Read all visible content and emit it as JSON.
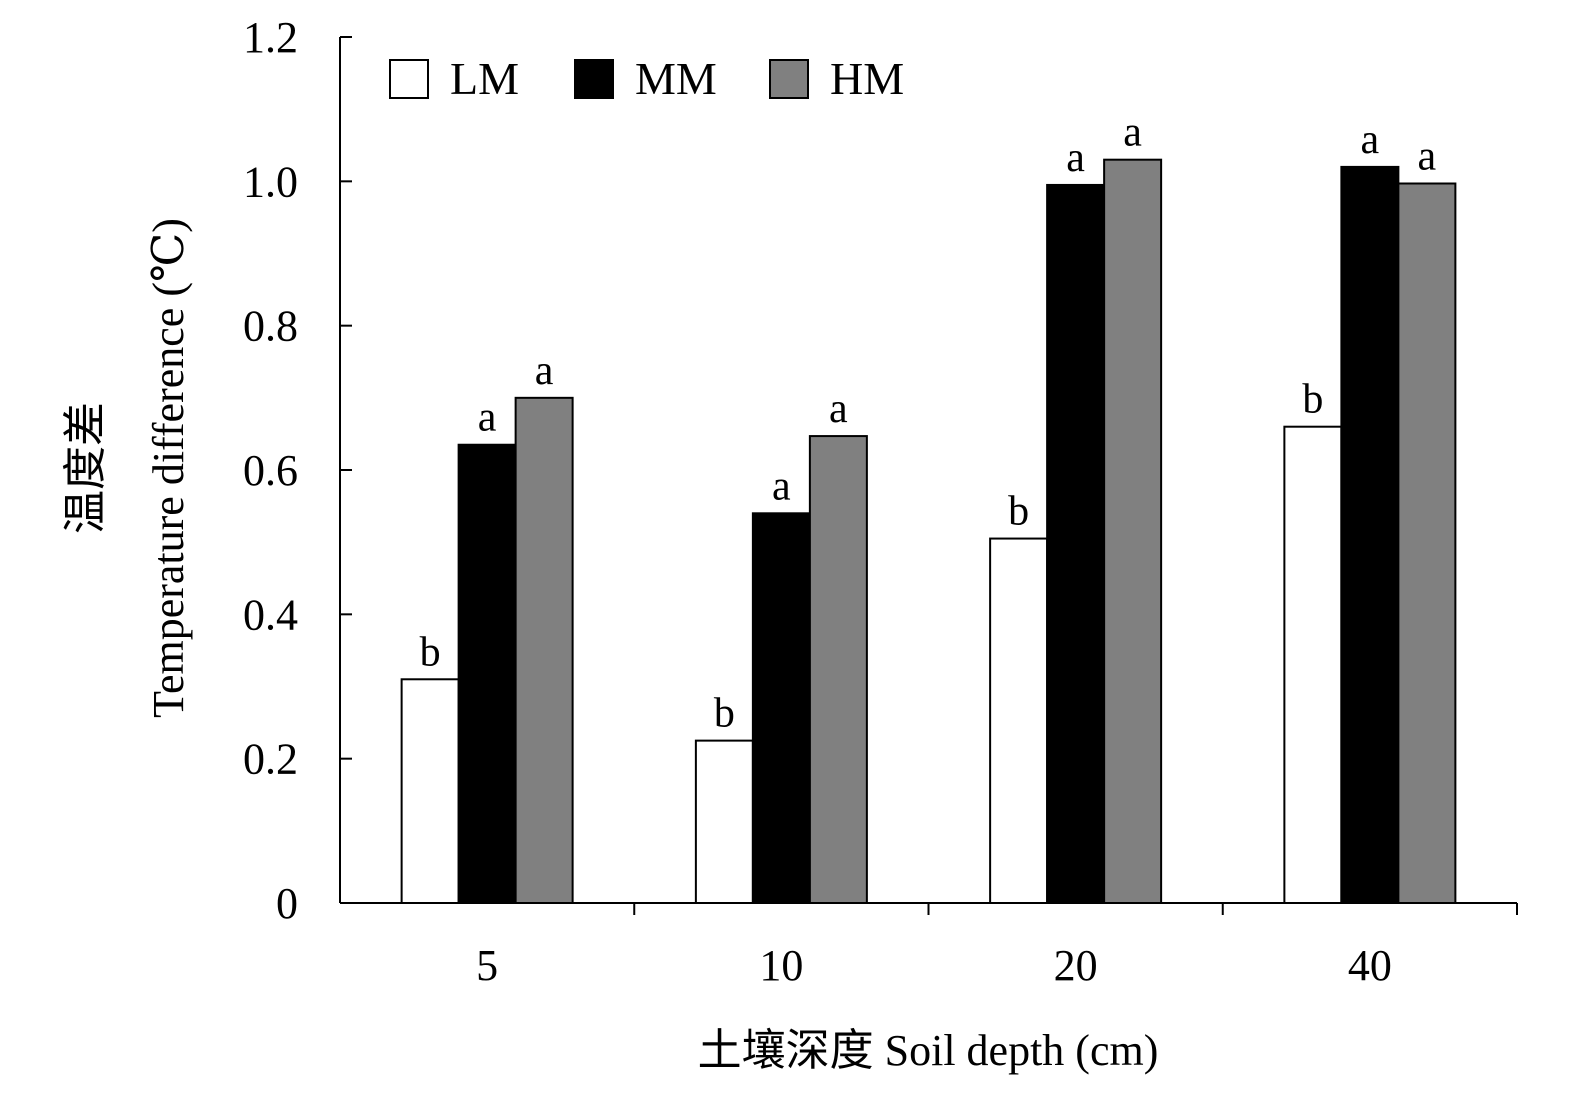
{
  "chart_data": {
    "type": "bar",
    "xlabel": "土壤深度 Soil depth (cm)",
    "ylabel_cn": "温度差",
    "ylabel": "Temperature difference (℃)",
    "categories": [
      "5",
      "10",
      "20",
      "40"
    ],
    "ylim": [
      0,
      1.2
    ],
    "yticks": [
      "0",
      "0.2",
      "0.4",
      "0.6",
      "0.8",
      "1.0",
      "1.2"
    ],
    "series": [
      {
        "name": "LM",
        "color": "#ffffff",
        "values": [
          0.31,
          0.225,
          0.505,
          0.66
        ],
        "labels": [
          "b",
          "b",
          "b",
          "b"
        ]
      },
      {
        "name": "MM",
        "color": "#000000",
        "values": [
          0.635,
          0.54,
          0.995,
          1.02
        ],
        "labels": [
          "a",
          "a",
          "a",
          "a"
        ]
      },
      {
        "name": "HM",
        "color": "#808080",
        "values": [
          0.7,
          0.647,
          1.03,
          0.997
        ],
        "labels": [
          "a",
          "a",
          "a",
          "a"
        ]
      }
    ],
    "legend_position": "top-left",
    "grid": false
  }
}
